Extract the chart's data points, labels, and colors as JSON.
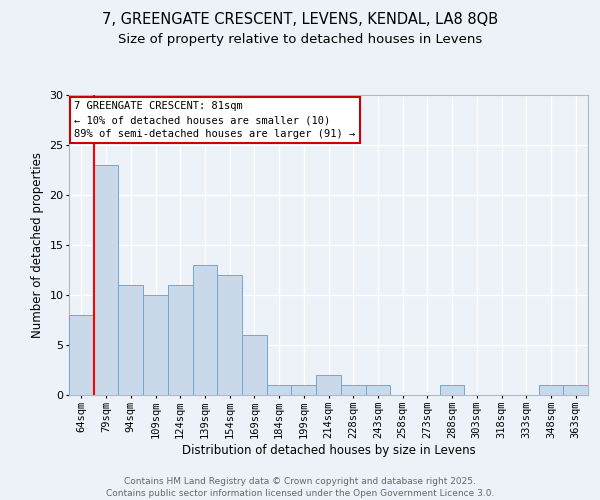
{
  "title_line1": "7, GREENGATE CRESCENT, LEVENS, KENDAL, LA8 8QB",
  "title_line2": "Size of property relative to detached houses in Levens",
  "xlabel": "Distribution of detached houses by size in Levens",
  "ylabel": "Number of detached properties",
  "categories": [
    "64sqm",
    "79sqm",
    "94sqm",
    "109sqm",
    "124sqm",
    "139sqm",
    "154sqm",
    "169sqm",
    "184sqm",
    "199sqm",
    "214sqm",
    "228sqm",
    "243sqm",
    "258sqm",
    "273sqm",
    "288sqm",
    "303sqm",
    "318sqm",
    "333sqm",
    "348sqm",
    "363sqm"
  ],
  "values": [
    8,
    23,
    11,
    10,
    11,
    13,
    12,
    6,
    1,
    1,
    2,
    1,
    1,
    0,
    0,
    1,
    0,
    0,
    0,
    1,
    1
  ],
  "bar_color": "#c9d9ea",
  "bar_edge_color": "#6fa8d0",
  "red_line_index": 1,
  "annotation_title": "7 GREENGATE CRESCENT: 81sqm",
  "annotation_line1": "← 10% of detached houses are smaller (10)",
  "annotation_line2": "89% of semi-detached houses are larger (91) →",
  "annotation_box_facecolor": "#ffffff",
  "annotation_box_edgecolor": "#cc0000",
  "ylim": [
    0,
    30
  ],
  "yticks": [
    0,
    5,
    10,
    15,
    20,
    25,
    30
  ],
  "background_color": "#edf2f8",
  "grid_color": "#ffffff",
  "footer_line1": "Contains HM Land Registry data © Crown copyright and database right 2025.",
  "footer_line2": "Contains public sector information licensed under the Open Government Licence 3.0.",
  "title_fontsize": 10.5,
  "subtitle_fontsize": 9.5,
  "xlabel_fontsize": 8.5,
  "ylabel_fontsize": 8.5,
  "tick_fontsize": 7.5,
  "annotation_fontsize": 7.5,
  "footer_fontsize": 6.5
}
